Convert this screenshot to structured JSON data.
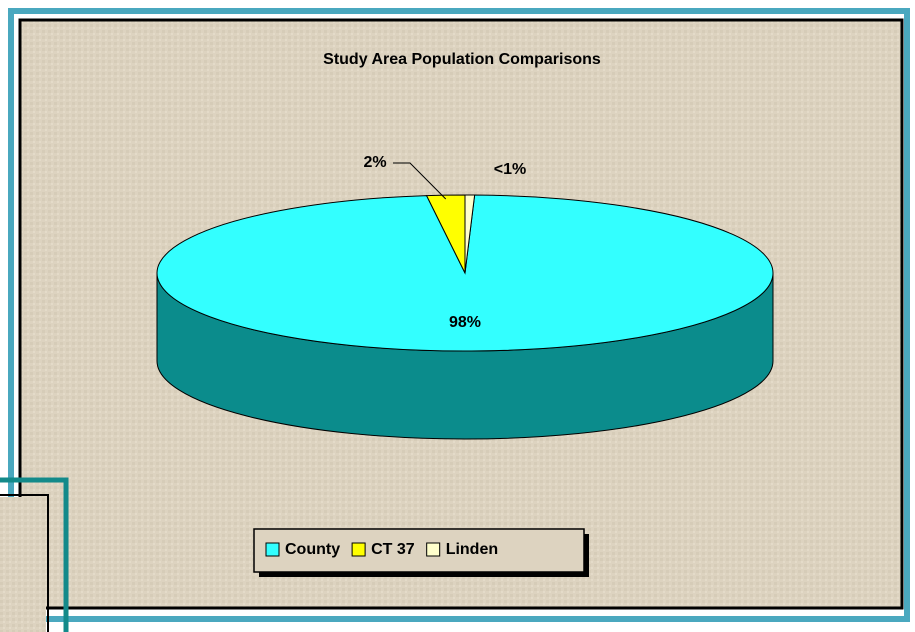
{
  "chart_data": {
    "type": "pie",
    "title": "Study Area Population Comparisons",
    "categories": [
      "County",
      "CT 37",
      "Linden"
    ],
    "values": [
      98,
      2,
      0.5
    ],
    "value_labels": [
      "98%",
      "2%",
      "<1%"
    ],
    "colors": [
      "#33ffff",
      "#ffff00",
      "#ffffcc"
    ],
    "legend": "bottom"
  }
}
